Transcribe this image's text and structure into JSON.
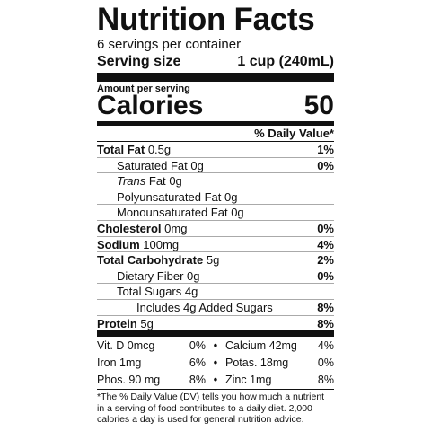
{
  "header": {
    "title": "Nutrition Facts",
    "servings": "6 servings per container",
    "serving_size_label": "Serving size",
    "serving_size_value": "1 cup (240mL)"
  },
  "calories": {
    "amount_label": "Amount per serving",
    "label": "Calories",
    "value": 50
  },
  "dv_header": "% Daily Value*",
  "rows": [
    {
      "name": "Total Fat",
      "amount": "0.5g",
      "dv": "1%"
    },
    {
      "name": "Saturated Fat",
      "amount": "0g",
      "dv": "0%"
    },
    {
      "name_italic": "Trans",
      "name": "Fat",
      "amount": "0g"
    },
    {
      "name": "Polyunsaturated Fat",
      "amount": "0g"
    },
    {
      "name": "Monounsaturated Fat",
      "amount": "0g"
    },
    {
      "name": "Cholesterol",
      "amount": "0mg",
      "dv": "0%"
    },
    {
      "name": "Sodium",
      "amount": "100mg",
      "dv": "4%"
    },
    {
      "name": "Total Carbohydrate",
      "amount": "5g",
      "dv": "2%"
    },
    {
      "name": "Dietary Fiber",
      "amount": "0g",
      "dv": "0%"
    },
    {
      "name": "Total Sugars",
      "amount": "4g"
    },
    {
      "name": "Includes 4g Added Sugars",
      "dv": "8%"
    },
    {
      "name": "Protein",
      "amount": "5g",
      "dv": "8%"
    }
  ],
  "vitamins": [
    [
      {
        "name": "Vit. D 0mcg",
        "dv": "0%"
      },
      {
        "name": "Calcium 42mg",
        "dv": "4%"
      }
    ],
    [
      {
        "name": "Iron 1mg",
        "dv": "6%"
      },
      {
        "name": "Potas. 18mg",
        "dv": "0%"
      }
    ],
    [
      {
        "name": "Phos. 90 mg",
        "dv": "8%"
      },
      {
        "name": "Zinc 1mg",
        "dv": "8%"
      }
    ]
  ],
  "footnote": "*The % Daily Value (DV) tells you how much a nutrient in a serving of food contributes to a daily diet. 2,000 calories a day is used for general nutrition advice."
}
